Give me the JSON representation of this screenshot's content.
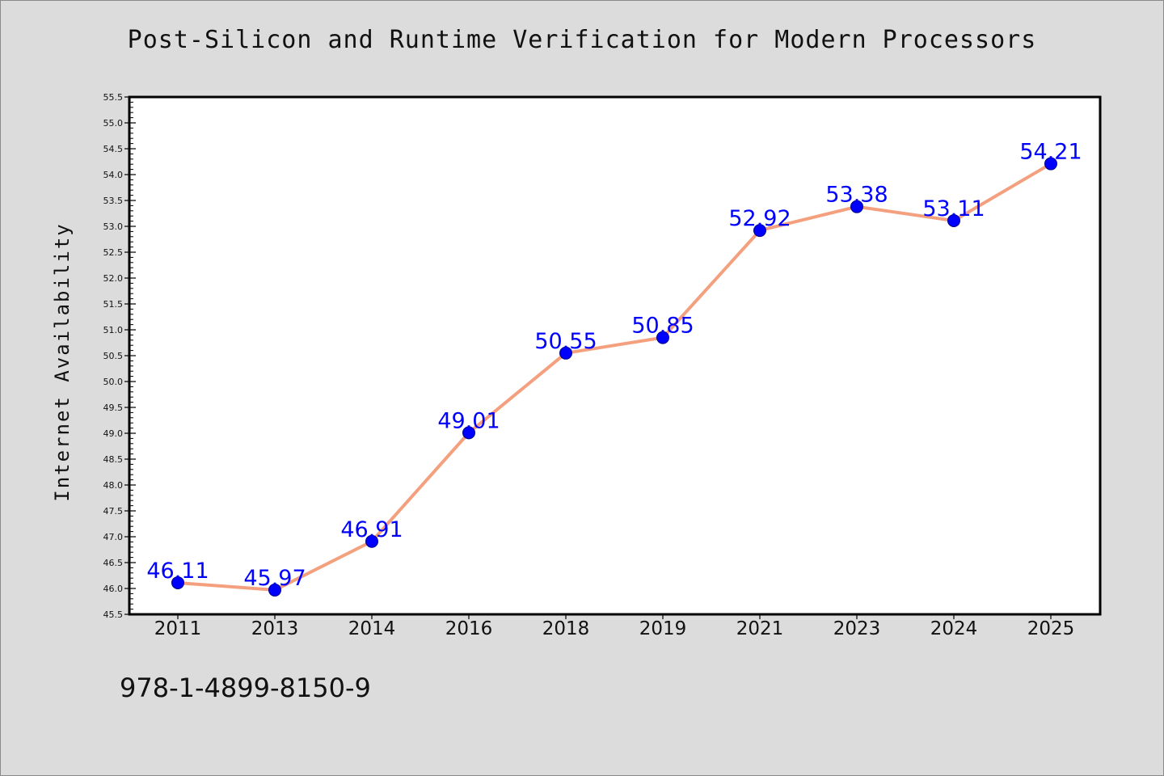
{
  "chart_data": {
    "type": "line",
    "title": "Post-Silicon and Runtime Verification for Modern Processors",
    "xlabel": "",
    "ylabel": "Internet Availability",
    "categories": [
      "2011",
      "2013",
      "2014",
      "2016",
      "2018",
      "2019",
      "2021",
      "2023",
      "2024",
      "2025"
    ],
    "series": [
      {
        "values": [
          46.11,
          45.97,
          46.91,
          49.01,
          50.55,
          50.85,
          52.92,
          53.38,
          53.11,
          54.21
        ]
      }
    ],
    "data_labels": [
      "46.11",
      "45.97",
      "46.91",
      "49.01",
      "50.55",
      "50.85",
      "52.92",
      "53.38",
      "53.11",
      "54.21"
    ],
    "ylim": [
      45.5,
      55.5
    ],
    "yticks": [
      "45.5",
      "46.0",
      "46.5",
      "47.0",
      "47.5",
      "48.0",
      "48.5",
      "49.0",
      "49.5",
      "50.0",
      "50.5",
      "51.0",
      "51.5",
      "52.0",
      "52.5",
      "53.0",
      "53.5",
      "54.0",
      "54.5",
      "55.0",
      "55.5"
    ],
    "grid": false,
    "legend": "none",
    "colors": {
      "line": "#f4a07f",
      "marker": "#0000ff",
      "marker_edge": "#00008b",
      "label": "#0000ff",
      "background": "#dcdcdc",
      "plot_area": "#ffffff"
    }
  },
  "footer": {
    "isbn": "978-1-4899-8150-9"
  }
}
